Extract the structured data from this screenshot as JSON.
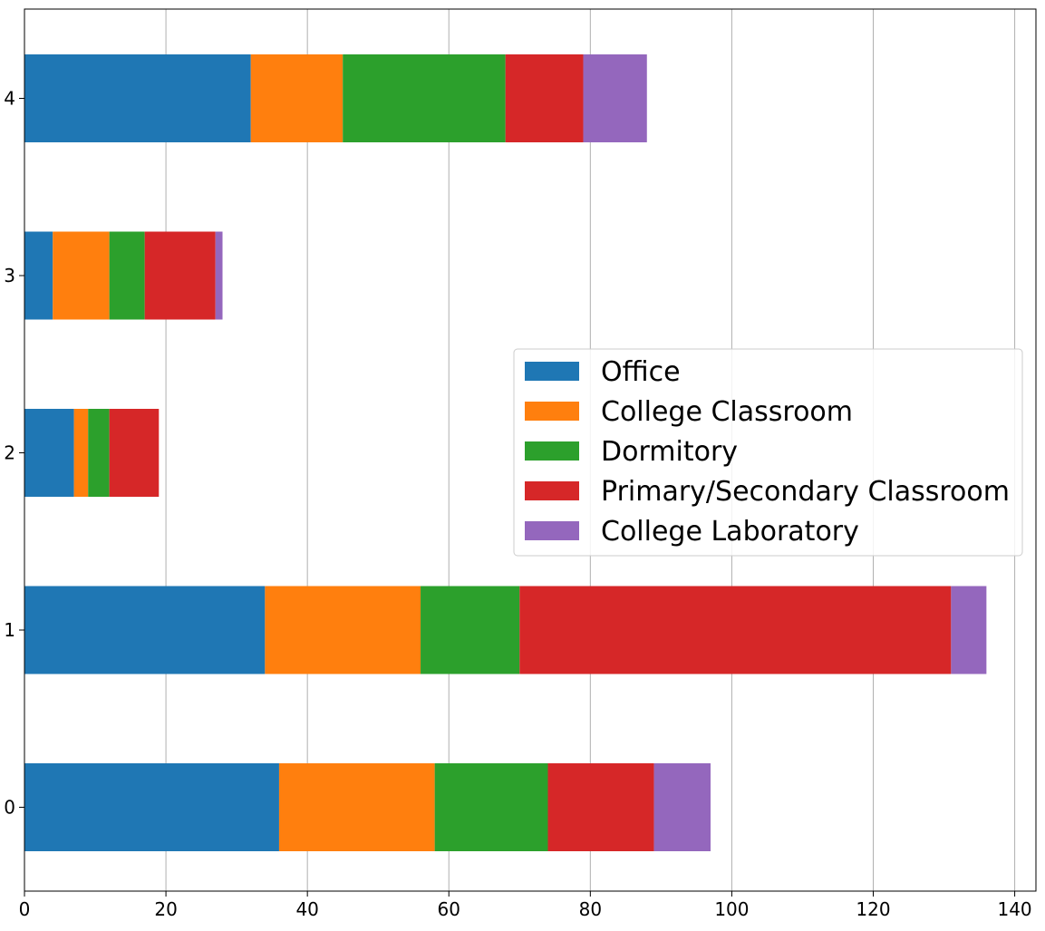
{
  "chart_data": {
    "type": "bar",
    "orientation": "horizontal",
    "stacked": true,
    "title": "",
    "xlabel": "",
    "ylabel": "",
    "categories": [
      "0",
      "1",
      "2",
      "3",
      "4"
    ],
    "series": [
      {
        "name": "Office",
        "color": "#1f77b4",
        "values": [
          36,
          34,
          7,
          4,
          32
        ]
      },
      {
        "name": "College Classroom",
        "color": "#ff7f0e",
        "values": [
          22,
          22,
          2,
          8,
          13
        ]
      },
      {
        "name": "Dormitory",
        "color": "#2ca02c",
        "values": [
          16,
          14,
          3,
          5,
          23
        ]
      },
      {
        "name": "Primary/Secondary Classroom",
        "color": "#d62728",
        "values": [
          15,
          61,
          7,
          10,
          11
        ]
      },
      {
        "name": "College Laboratory",
        "color": "#9467bd",
        "values": [
          8,
          5,
          0,
          1,
          9
        ]
      }
    ],
    "xlim": [
      0,
      143
    ],
    "xticks": [
      0,
      20,
      40,
      60,
      80,
      100,
      120,
      140
    ],
    "grid": {
      "x": true,
      "y": false
    },
    "legend_position": "center-right"
  }
}
